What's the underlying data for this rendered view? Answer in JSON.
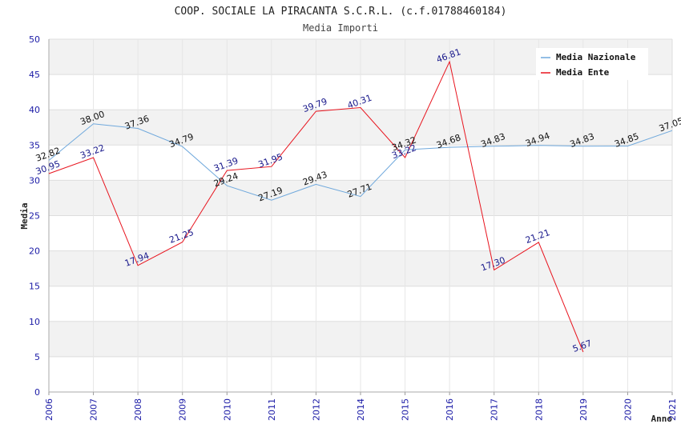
{
  "chart_data": {
    "type": "line",
    "title": "COOP. SOCIALE LA PIRACANTA S.C.R.L. (c.f.01788460184)",
    "subtitle": "Media Importi",
    "xlabel": "Anno",
    "ylabel": "Media",
    "ylim": [
      0,
      50
    ],
    "yticks": [
      "0",
      "5",
      "10",
      "15",
      "20",
      "25",
      "30",
      "35",
      "40",
      "45",
      "50"
    ],
    "categories": [
      "2006",
      "2007",
      "2008",
      "2009",
      "2010",
      "2011",
      "2012",
      "2014",
      "2015",
      "2016",
      "2017",
      "2018",
      "2019",
      "2020",
      "2021"
    ],
    "grid": true,
    "legend_position": "top-right",
    "series": [
      {
        "name": "Media Nazionale",
        "color": "#6fa8dc",
        "label_color": "#111111",
        "values": [
          32.82,
          38.0,
          37.36,
          34.79,
          29.24,
          27.19,
          29.43,
          27.71,
          34.32,
          34.68,
          34.83,
          34.94,
          34.83,
          34.85,
          37.05
        ],
        "labels": [
          "32.82",
          "38.00",
          "37.36",
          "34.79",
          "29.24",
          "27.19",
          "29.43",
          "27.71",
          "34.32",
          "34.68",
          "34.83",
          "34.94",
          "34.83",
          "34.85",
          "37.05"
        ]
      },
      {
        "name": "Media Ente",
        "color": "#e8141e",
        "label_color": "#1a1a8c",
        "values": [
          30.95,
          33.22,
          17.94,
          21.25,
          31.39,
          31.95,
          39.79,
          40.31,
          33.22,
          46.81,
          17.3,
          21.21,
          5.67,
          null,
          null
        ],
        "labels": [
          "30.95",
          "33.22",
          "17.94",
          "21.25",
          "31.39",
          "31.95",
          "39.79",
          "40.31",
          "33.22",
          "46.81",
          "17.30",
          "21.21",
          "5.67",
          "",
          ""
        ]
      }
    ]
  }
}
